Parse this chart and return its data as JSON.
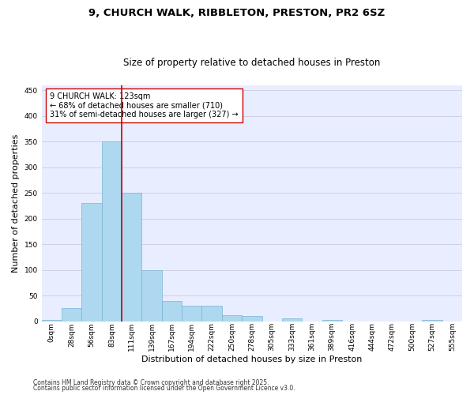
{
  "title_line1": "9, CHURCH WALK, RIBBLETON, PRESTON, PR2 6SZ",
  "title_line2": "Size of property relative to detached houses in Preston",
  "xlabel": "Distribution of detached houses by size in Preston",
  "ylabel": "Number of detached properties",
  "bar_values": [
    2,
    25,
    230,
    350,
    250,
    100,
    40,
    30,
    30,
    12,
    10,
    0,
    5,
    0,
    3,
    0,
    0,
    0,
    0,
    2,
    0
  ],
  "bar_labels": [
    "0sqm",
    "28sqm",
    "56sqm",
    "83sqm",
    "111sqm",
    "139sqm",
    "167sqm",
    "194sqm",
    "222sqm",
    "250sqm",
    "278sqm",
    "305sqm",
    "333sqm",
    "361sqm",
    "389sqm",
    "416sqm",
    "444sqm",
    "472sqm",
    "500sqm",
    "527sqm",
    "555sqm"
  ],
  "bar_color": "#add8f0",
  "bar_edge_color": "#7ab4d4",
  "ylim": [
    0,
    460
  ],
  "yticks": [
    0,
    50,
    100,
    150,
    200,
    250,
    300,
    350,
    400,
    450
  ],
  "vline_x": 4.0,
  "vline_color": "#cc0000",
  "annotation_text": "9 CHURCH WALK: 123sqm\n← 68% of detached houses are smaller (710)\n31% of semi-detached houses are larger (327) →",
  "annotation_box_facecolor": "#ffffff",
  "annotation_box_edgecolor": "#cc0000",
  "footnote_line1": "Contains HM Land Registry data © Crown copyright and database right 2025.",
  "footnote_line2": "Contains public sector information licensed under the Open Government Licence v3.0.",
  "background_color": "#e8eeff",
  "grid_color": "#c8ccdd",
  "title_fontsize": 9.5,
  "subtitle_fontsize": 8.5,
  "xlabel_fontsize": 8,
  "ylabel_fontsize": 8,
  "tick_fontsize": 6.5,
  "annotation_fontsize": 7,
  "footnote_fontsize": 5.5
}
